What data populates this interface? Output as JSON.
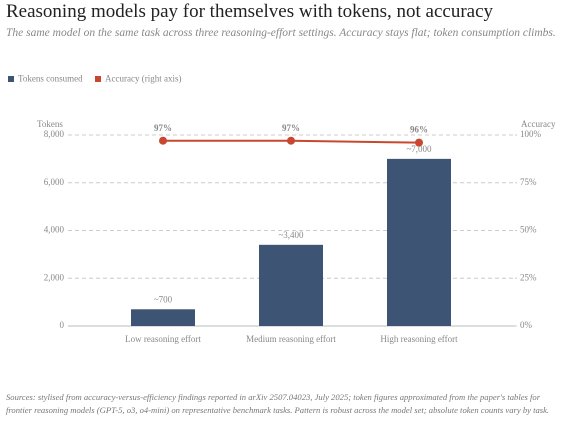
{
  "chart_data": {
    "type": "bar",
    "title": "Reasoning models pay for themselves with tokens, not accuracy",
    "subtitle": "The same model on the same task across three reasoning-effort settings. Accuracy stays flat; token consumption climbs.",
    "y_label": "Tokens",
    "y2_label": "Accuracy",
    "categories": [
      "Low reasoning effort",
      "Medium reasoning effort",
      "High reasoning effort"
    ],
    "series": [
      {
        "name": "Tokens consumed",
        "color": "#3d5475",
        "values": [
          700,
          3400,
          7000
        ],
        "value_labels": [
          "~700",
          "~3,400",
          "~7,000"
        ]
      },
      {
        "name": "Accuracy (right axis)",
        "color": "#c8472f",
        "type": "line",
        "axis": "y2",
        "values": [
          97,
          97,
          96
        ],
        "value_labels": [
          "97%",
          "97%",
          "96%"
        ]
      }
    ],
    "ylim": [
      0,
      8000
    ],
    "yticks": [
      0,
      {
        "value": 2000,
        "label": "2,000"
      },
      {
        "value": 4000,
        "label": "4,000"
      },
      {
        "value": 6000,
        "label": "6,000"
      },
      {
        "value": 8000,
        "label": "8,000"
      }
    ],
    "y2lim": [
      0,
      100
    ],
    "y2ticks": [
      {
        "value": 0,
        "label": "0%"
      },
      {
        "value": 25,
        "label": "25%"
      },
      {
        "value": 50,
        "label": "50%"
      },
      {
        "value": 75,
        "label": "75%"
      },
      {
        "value": 100,
        "label": "100%"
      }
    ],
    "grid": true,
    "source": "Sources: stylised from accuracy-versus-efficiency findings reported in arXiv 2507.04023, July 2025; token figures approximated from the paper's tables for frontier reasoning models (GPT-5, o3, o4-mini) on representative benchmark tasks. Pattern is robust across the model set; absolute token counts vary by task."
  }
}
